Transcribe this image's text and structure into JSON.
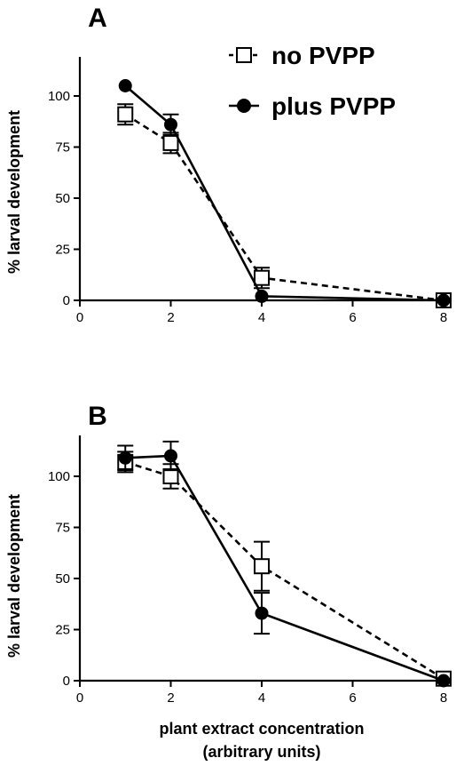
{
  "chart_data": [
    {
      "type": "line",
      "panel_label": "A",
      "ylabel": "% larval development",
      "xlabel": "",
      "x_ticks": [
        "0",
        "2",
        "4",
        "6",
        "8"
      ],
      "y_ticks": [
        "0",
        "25",
        "50",
        "75",
        "100"
      ],
      "xlim": [
        0,
        8
      ],
      "ylim": [
        0,
        120
      ],
      "legend_position": "top-right",
      "series": [
        {
          "name": "no PVPP",
          "marker": "open-square",
          "line": "dashed",
          "x": [
            1,
            2,
            4,
            8
          ],
          "y": [
            91,
            77,
            11,
            0
          ],
          "err": [
            5,
            5,
            5,
            2
          ]
        },
        {
          "name": "plus PVPP",
          "marker": "filled-circle",
          "line": "solid",
          "x": [
            1,
            2,
            4,
            8
          ],
          "y": [
            105,
            86,
            2,
            0
          ],
          "err": [
            0,
            5,
            0,
            0
          ]
        }
      ]
    },
    {
      "type": "line",
      "panel_label": "B",
      "ylabel": "% larval development",
      "xlabel": "plant extract concentration",
      "xlabel_line2": "(arbitrary units)",
      "x_ticks": [
        "0",
        "2",
        "4",
        "6",
        "8"
      ],
      "y_ticks": [
        "0",
        "25",
        "50",
        "75",
        "100"
      ],
      "xlim": [
        0,
        8
      ],
      "ylim": [
        0,
        120
      ],
      "legend_position": "none",
      "series": [
        {
          "name": "no PVPP",
          "marker": "open-square",
          "line": "dashed",
          "x": [
            1,
            2,
            4,
            8
          ],
          "y": [
            107,
            100,
            56,
            1
          ],
          "err": [
            5,
            6,
            12,
            2
          ]
        },
        {
          "name": "plus PVPP",
          "marker": "filled-circle",
          "line": "solid",
          "x": [
            1,
            2,
            4,
            8
          ],
          "y": [
            109,
            110,
            33,
            0
          ],
          "err": [
            6,
            7,
            10,
            0
          ]
        }
      ]
    }
  ],
  "colors": {
    "ink": "#000000",
    "background": "#ffffff"
  }
}
